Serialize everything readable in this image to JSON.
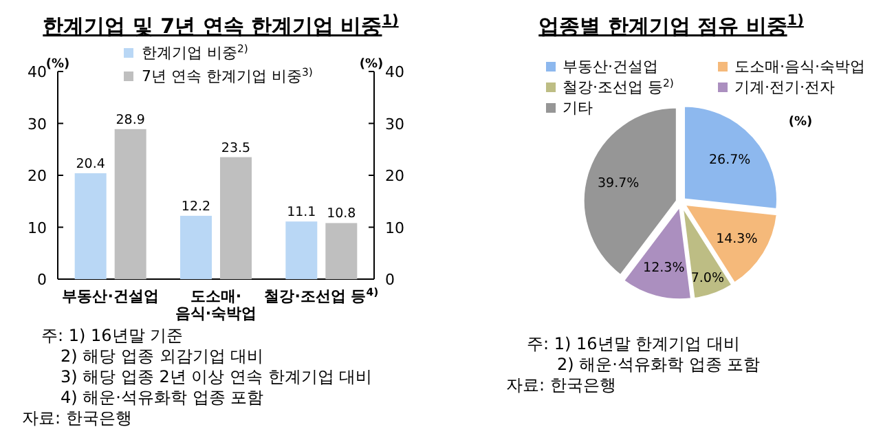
{
  "chart_data": [
    {
      "type": "bar",
      "title": "한계기업 및 7년 연속 한계기업 비중$^{1)}$",
      "categories": [
        "부동산·건설업",
        "도소매·\n음식·숙박업",
        "철강·조선업 등$^{4)}$"
      ],
      "series": [
        {
          "name": "한계기업 비중$^{2)}$",
          "color": "#b9d7f5",
          "values": [
            20.4,
            12.2,
            11.1
          ]
        },
        {
          "name": "7년 연속 한계기업 비중$^{3)}$",
          "color": "#bfbfbf",
          "values": [
            28.9,
            23.5,
            10.8
          ]
        }
      ],
      "ylabel": "(%)",
      "y2label": "(%)",
      "ylim": [
        0,
        40
      ],
      "yticks": [
        0,
        10,
        20,
        30,
        40
      ],
      "y2lim": [
        0,
        40
      ],
      "y2ticks": [
        0,
        10,
        20,
        30,
        40
      ],
      "data_labels": true,
      "legend": "top",
      "grid": false,
      "annotations": [
        "주: 1) 16년말 기준",
        "2) 해당 업종 외감기업 대비",
        "3) 해당 업종 2년 이상 연속 한계기업 대비",
        "4) 해운·석유화학 업종 포함",
        "자료: 한국은행"
      ]
    },
    {
      "type": "pie",
      "title": "업종별 한계기업 점유 비중$^{1)}$",
      "categories": [
        "부동산·건설업",
        "도소매·음식·숙박업",
        "철강·조선업 등$^{2)}$",
        "기계·전기·전자",
        "기타"
      ],
      "values": [
        26.7,
        14.3,
        7.0,
        12.3,
        39.7
      ],
      "value_labels": [
        "26.7%",
        "14.3%",
        "7.0%",
        "12.3%",
        "39.7%"
      ],
      "colors": [
        "#8db8ee",
        "#f5b97a",
        "#bdbd84",
        "#ab8fbf",
        "#969696"
      ],
      "legend": "top",
      "annotations": [
        "(%)",
        "주: 1) 16년말 한계기업 대비",
        "2) 해운·석유화학 업종 포함",
        "자료: 한국은행"
      ]
    }
  ]
}
